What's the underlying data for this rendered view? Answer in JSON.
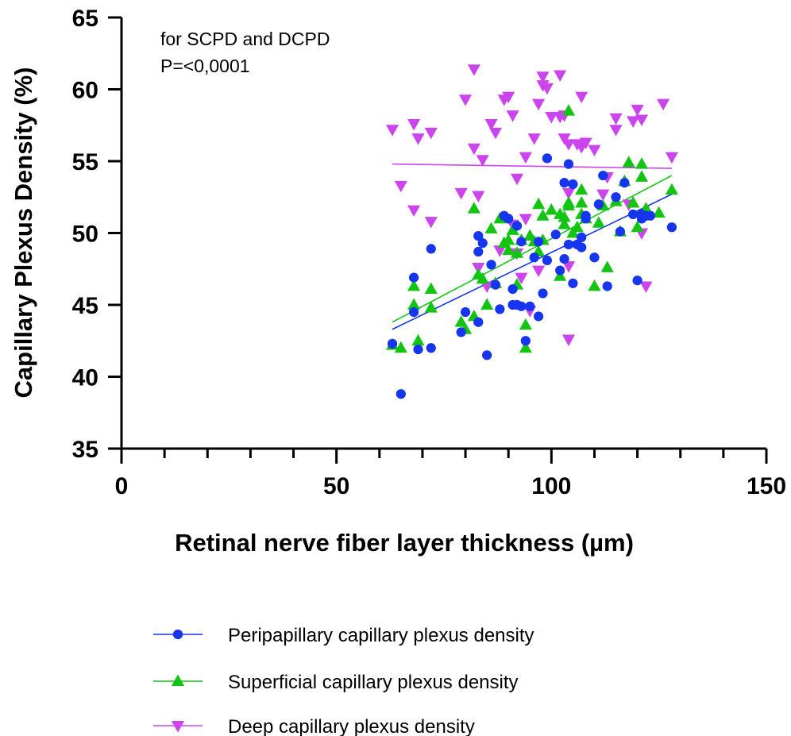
{
  "chart_data": {
    "type": "scatter",
    "xlabel": "Retinal nerve fiber layer thickness (µm)",
    "ylabel": "Capillary Plexus Density (%)",
    "xlim": [
      0,
      150
    ],
    "ylim": [
      35,
      65
    ],
    "x_ticks": [
      "0",
      "50",
      "100",
      "150"
    ],
    "y_ticks": [
      "35",
      "40",
      "45",
      "50",
      "55",
      "60",
      "65"
    ],
    "annotations": [
      "for SCPD and DCPD",
      "P=<0,0001"
    ],
    "legend_position": "bottom",
    "series": [
      {
        "name": "Peripapillary capillary plexus density",
        "marker": "circle",
        "color": "#1535ee",
        "fit": {
          "x": [
            63,
            128
          ],
          "y": [
            43.3,
            52.7
          ]
        },
        "points": [
          [
            63,
            42.3
          ],
          [
            65,
            38.8
          ],
          [
            68,
            46.9
          ],
          [
            68,
            44.5
          ],
          [
            69,
            41.9
          ],
          [
            72,
            42
          ],
          [
            72,
            48.9
          ],
          [
            79,
            43.1
          ],
          [
            80,
            44.5
          ],
          [
            83,
            48.7
          ],
          [
            83,
            49.8
          ],
          [
            83,
            43.8
          ],
          [
            84,
            49.3
          ],
          [
            85,
            41.5
          ],
          [
            86,
            47.8
          ],
          [
            87,
            46.4
          ],
          [
            88,
            44.7
          ],
          [
            89,
            51.2
          ],
          [
            90,
            51
          ],
          [
            91,
            46.1
          ],
          [
            91,
            45
          ],
          [
            92,
            45
          ],
          [
            92,
            50.5
          ],
          [
            93,
            49.4
          ],
          [
            93,
            44.9
          ],
          [
            94,
            42.5
          ],
          [
            95,
            44.9
          ],
          [
            96,
            48.3
          ],
          [
            97,
            49.4
          ],
          [
            97,
            44.2
          ],
          [
            98,
            45.8
          ],
          [
            99,
            48.1
          ],
          [
            99,
            55.2
          ],
          [
            101,
            49.9
          ],
          [
            102,
            47.4
          ],
          [
            103,
            48.2
          ],
          [
            103,
            53.5
          ],
          [
            104,
            54.8
          ],
          [
            104,
            49.2
          ],
          [
            105,
            53.4
          ],
          [
            105,
            46.5
          ],
          [
            106,
            49.2
          ],
          [
            107,
            49.7
          ],
          [
            107,
            49
          ],
          [
            108,
            51.2
          ],
          [
            108,
            51
          ],
          [
            110,
            48.3
          ],
          [
            111,
            52
          ],
          [
            112,
            54
          ],
          [
            113,
            46.3
          ],
          [
            115,
            52.5
          ],
          [
            116,
            50.1
          ],
          [
            117,
            53.5
          ],
          [
            119,
            51.3
          ],
          [
            120,
            46.7
          ],
          [
            121,
            51
          ],
          [
            121,
            51.3
          ],
          [
            122,
            51.2
          ],
          [
            123,
            51.2
          ],
          [
            128,
            50.4
          ]
        ]
      },
      {
        "name": "Superficial capillary plexus density",
        "marker": "triangle-up",
        "color": "#13c413",
        "fit": {
          "x": [
            63,
            128
          ],
          "y": [
            43.8,
            54
          ]
        },
        "points": [
          [
            63,
            42.2
          ],
          [
            65,
            42
          ],
          [
            68,
            46.3
          ],
          [
            68,
            45
          ],
          [
            69,
            42.5
          ],
          [
            72,
            44.8
          ],
          [
            72,
            46.1
          ],
          [
            79,
            43.8
          ],
          [
            80,
            43.3
          ],
          [
            82,
            44.2
          ],
          [
            82,
            51.7
          ],
          [
            83,
            47.1
          ],
          [
            84,
            46.8
          ],
          [
            85,
            45
          ],
          [
            86,
            50.3
          ],
          [
            87,
            46.5
          ],
          [
            88,
            51
          ],
          [
            89,
            49.3
          ],
          [
            90,
            49.5
          ],
          [
            90,
            48.8
          ],
          [
            91,
            50.2
          ],
          [
            92,
            48.6
          ],
          [
            92,
            46.4
          ],
          [
            93,
            49.5
          ],
          [
            94,
            43.6
          ],
          [
            94,
            42
          ],
          [
            95,
            49.8
          ],
          [
            96,
            49.4
          ],
          [
            97,
            48.7
          ],
          [
            97,
            52
          ],
          [
            98,
            51.2
          ],
          [
            98,
            49.5
          ],
          [
            100,
            51.6
          ],
          [
            102,
            47
          ],
          [
            102,
            51.3
          ],
          [
            103,
            51.1
          ],
          [
            103,
            50.6
          ],
          [
            104,
            51.9
          ],
          [
            104,
            52.1
          ],
          [
            104,
            58.5
          ],
          [
            105,
            50
          ],
          [
            106,
            50.4
          ],
          [
            107,
            53
          ],
          [
            107,
            52.1
          ],
          [
            107,
            51.3
          ],
          [
            108,
            51
          ],
          [
            110,
            46.3
          ],
          [
            111,
            50.7
          ],
          [
            112,
            51.9
          ],
          [
            113,
            47.6
          ],
          [
            115,
            52.2
          ],
          [
            116,
            50.1
          ],
          [
            117,
            53.6
          ],
          [
            118,
            54.9
          ],
          [
            119,
            52.1
          ],
          [
            120,
            50.4
          ],
          [
            121,
            54.8
          ],
          [
            121,
            53.9
          ],
          [
            122,
            51.7
          ],
          [
            125,
            51.4
          ],
          [
            128,
            53
          ]
        ]
      },
      {
        "name": "Deep capillary plexus density",
        "marker": "triangle-down",
        "color": "#cc44ee",
        "fit": {
          "x": [
            63,
            128
          ],
          "y": [
            54.8,
            54.5
          ]
        },
        "points": [
          [
            63,
            57.2
          ],
          [
            65,
            53.3
          ],
          [
            68,
            57.6
          ],
          [
            68,
            51.6
          ],
          [
            69,
            56.6
          ],
          [
            72,
            50.8
          ],
          [
            72,
            57
          ],
          [
            79,
            52.8
          ],
          [
            80,
            59.3
          ],
          [
            82,
            61.4
          ],
          [
            82,
            55.9
          ],
          [
            83,
            52.6
          ],
          [
            83,
            47.6
          ],
          [
            84,
            55.1
          ],
          [
            85,
            46.3
          ],
          [
            86,
            57.6
          ],
          [
            87,
            57
          ],
          [
            88,
            48.8
          ],
          [
            89,
            59.3
          ],
          [
            90,
            59.5
          ],
          [
            91,
            58.2
          ],
          [
            91,
            50.6
          ],
          [
            92,
            53.8
          ],
          [
            92,
            48.6
          ],
          [
            93,
            46.9
          ],
          [
            94,
            55.3
          ],
          [
            94,
            51
          ],
          [
            95,
            44.6
          ],
          [
            96,
            56.6
          ],
          [
            97,
            47.4
          ],
          [
            97,
            59
          ],
          [
            98,
            60.3
          ],
          [
            98,
            60.9
          ],
          [
            99,
            60.1
          ],
          [
            100,
            58.1
          ],
          [
            102,
            61
          ],
          [
            102,
            58.1
          ],
          [
            103,
            56.6
          ],
          [
            103,
            58.2
          ],
          [
            104,
            52.8
          ],
          [
            104,
            56.2
          ],
          [
            104,
            47.7
          ],
          [
            104,
            42.6
          ],
          [
            106,
            56.2
          ],
          [
            107,
            56
          ],
          [
            107,
            59.5
          ],
          [
            108,
            56.3
          ],
          [
            110,
            55.8
          ],
          [
            112,
            52.7
          ],
          [
            113,
            53.9
          ],
          [
            115,
            58
          ],
          [
            115,
            57.2
          ],
          [
            118,
            52
          ],
          [
            119,
            57.8
          ],
          [
            120,
            58.6
          ],
          [
            121,
            57.9
          ],
          [
            121,
            50
          ],
          [
            122,
            46.3
          ],
          [
            126,
            59
          ],
          [
            128,
            55.3
          ]
        ]
      }
    ]
  }
}
